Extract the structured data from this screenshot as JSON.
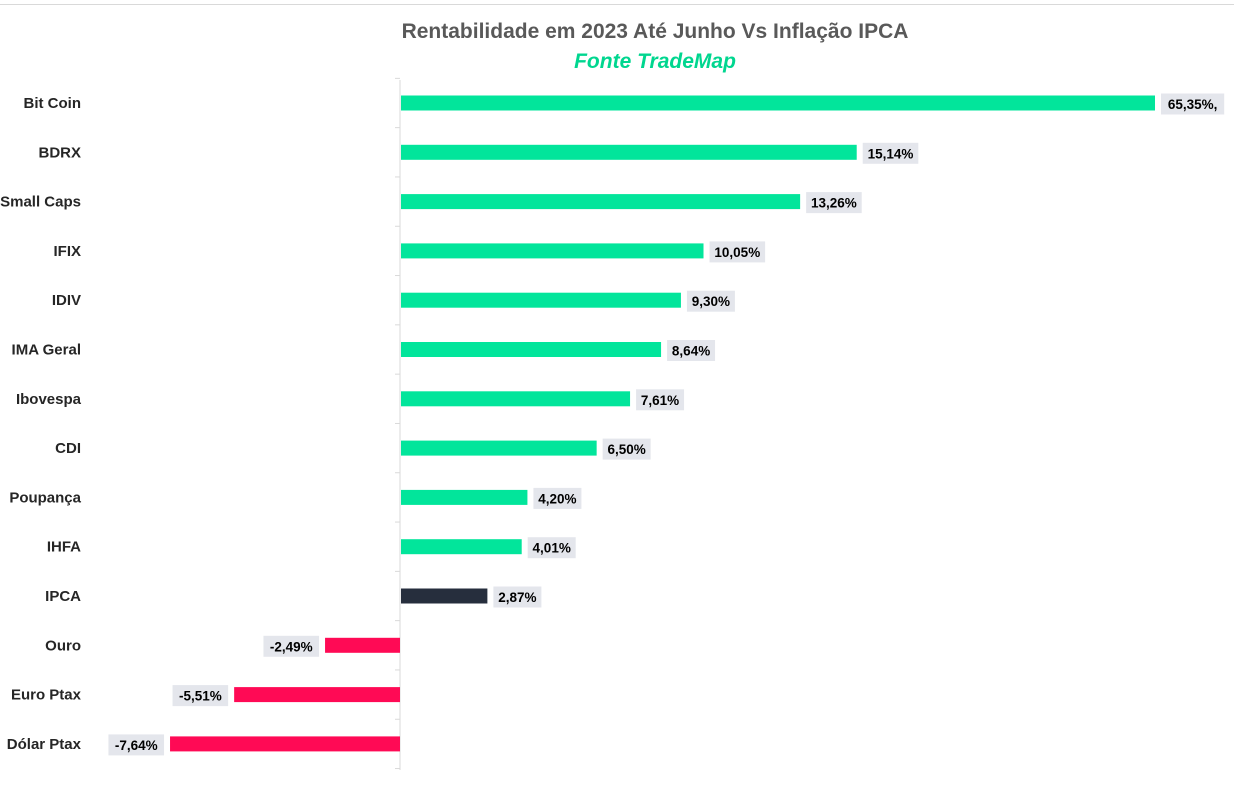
{
  "chart_data": {
    "type": "bar",
    "orientation": "horizontal",
    "title": "Rentabilidade em 2023 Até Junho Vs Inflação IPCA",
    "subtitle": "Fonte TradeMap",
    "categories": [
      "Bit Coin",
      "BDRX",
      "Small Caps",
      "IFIX",
      "IDIV",
      "IMA Geral",
      "Ibovespa",
      "CDI",
      "Poupança",
      "IHFA",
      "IPCA",
      "Ouro",
      "Euro Ptax",
      "Dólar Ptax"
    ],
    "values": [
      65.35,
      15.14,
      13.26,
      10.05,
      9.3,
      8.64,
      7.61,
      6.5,
      4.2,
      4.01,
      2.87,
      -2.49,
      -5.51,
      -7.64
    ],
    "data_labels": [
      "65,35%,",
      "15,14%",
      "13,26%",
      "10,05%",
      "9,30%",
      "8,64%",
      "7,61%",
      "6,50%",
      "4,20%",
      "4,01%",
      "2,87%",
      "-2,49%",
      "-5,51%",
      "-7,64%"
    ],
    "xlim": [
      -10,
      25
    ],
    "axis_break": true,
    "legend": "none",
    "grid": false
  },
  "colors": {
    "positive": "#02E59B",
    "benchmark": "#262E3D",
    "negative": "#FF0A55",
    "subtitle": "#00D68F",
    "label_bg": "#E4E6EC"
  }
}
